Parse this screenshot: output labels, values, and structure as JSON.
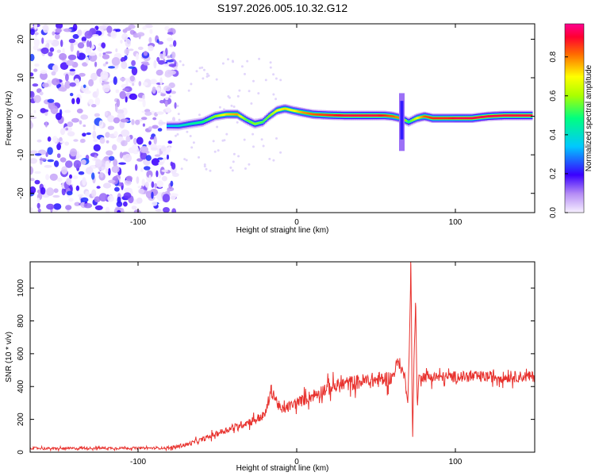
{
  "page_title": "S197.2026.005.10.32.G12",
  "chart_data": [
    {
      "type": "heatmap",
      "title": "S197.2026.005.10.32.G12",
      "xlabel": "Height of straight line (km)",
      "ylabel": "Frequency (Hz)",
      "xlim": [
        -168,
        150
      ],
      "ylim": [
        -25,
        24
      ],
      "xticks": [
        -100,
        0,
        100
      ],
      "yticks": [
        -20,
        -10,
        0,
        10,
        20
      ],
      "noise_region_end_km": -80,
      "ridge": {
        "x": [
          -82,
          -75,
          -68,
          -60,
          -52,
          -45,
          -38,
          -32,
          -27,
          -22,
          -18,
          -13,
          -8,
          -3,
          3,
          10,
          20,
          30,
          40,
          50,
          55,
          60,
          65,
          70,
          75,
          80,
          85,
          90,
          95,
          100,
          110,
          120,
          130,
          140,
          148
        ],
        "freq": [
          -2.5,
          -2.5,
          -2.0,
          -1.5,
          0.0,
          0.5,
          0.5,
          -1.0,
          -2.0,
          -1.5,
          0.0,
          1.5,
          2.0,
          1.5,
          1.0,
          0.5,
          0.3,
          0.2,
          0.2,
          0.2,
          0.2,
          0.0,
          -0.5,
          -1.5,
          -0.5,
          0.0,
          -0.5,
          -0.5,
          -0.5,
          -0.5,
          -0.5,
          0.0,
          0.2,
          0.2,
          0.2
        ],
        "amplitude": [
          0.35,
          0.4,
          0.45,
          0.5,
          0.6,
          0.75,
          0.8,
          0.55,
          0.6,
          0.55,
          0.6,
          0.7,
          0.75,
          0.7,
          0.8,
          0.85,
          0.9,
          0.95,
          0.95,
          0.95,
          0.9,
          0.85,
          0.8,
          0.5,
          0.7,
          0.85,
          0.9,
          0.9,
          0.9,
          0.95,
          0.95,
          0.95,
          0.95,
          0.95,
          0.95
        ]
      },
      "spike": {
        "x": 66,
        "freq_range": [
          -9,
          6
        ]
      },
      "colorbar": {
        "label": "Normalized spectral amplitude",
        "range": [
          0.0,
          0.97
        ],
        "ticks": [
          0.0,
          0.2,
          0.4,
          0.6,
          0.8
        ],
        "tick_labels": [
          "0.0",
          "0.2",
          "0.4",
          "0.6",
          "0.8"
        ]
      }
    },
    {
      "type": "line",
      "xlabel": "Height of straight line (km)",
      "ylabel": "SNR (10 * v/v)",
      "xlim": [
        -168,
        150
      ],
      "ylim": [
        0,
        1160
      ],
      "xticks": [
        -100,
        0,
        100
      ],
      "yticks": [
        0,
        200,
        400,
        600,
        800,
        1000
      ],
      "series": [
        {
          "name": "SNR",
          "color": "#e8322e",
          "x": [
            -168,
            -150,
            -130,
            -110,
            -90,
            -80,
            -70,
            -60,
            -50,
            -40,
            -30,
            -20,
            -16,
            -10,
            0,
            10,
            20,
            30,
            40,
            50,
            60,
            64,
            68,
            70,
            71,
            72,
            73,
            74,
            75,
            76,
            77,
            80,
            90,
            100,
            110,
            120,
            130,
            140,
            150
          ],
          "y": [
            25,
            22,
            25,
            25,
            25,
            25,
            45,
            75,
            115,
            150,
            185,
            225,
            380,
            255,
            300,
            345,
            390,
            415,
            430,
            440,
            450,
            560,
            460,
            300,
            640,
            1160,
            50,
            600,
            910,
            250,
            470,
            460,
            455,
            460,
            460,
            460,
            458,
            460,
            460
          ]
        }
      ],
      "spikes": [
        {
          "x": 72,
          "peak": 1160
        },
        {
          "x": 75,
          "peak": 910
        },
        {
          "x": -16,
          "peak": 380
        }
      ]
    }
  ]
}
